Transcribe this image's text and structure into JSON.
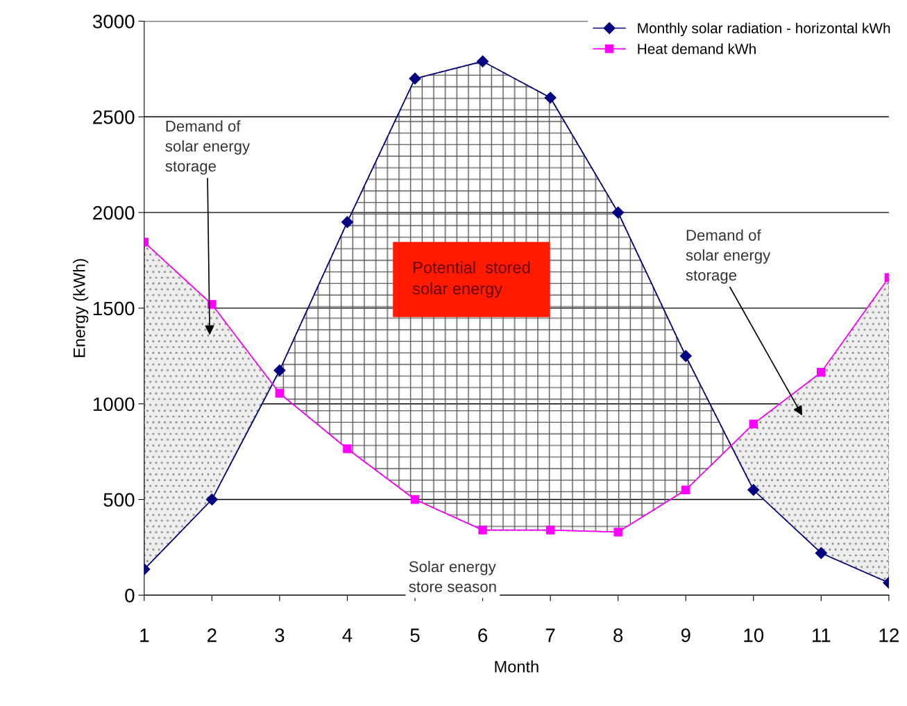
{
  "chart_data": {
    "type": "line",
    "xlabel": "Month",
    "ylabel": "Energy (kWh)",
    "x": [
      1,
      2,
      3,
      4,
      5,
      6,
      7,
      8,
      9,
      10,
      11,
      12
    ],
    "series": [
      {
        "name": "Monthly solar radiation - horizontal kWh",
        "color": "#000080",
        "marker": "diamond",
        "values": [
          135,
          500,
          1175,
          1950,
          2700,
          2790,
          2600,
          2000,
          1250,
          550,
          220,
          65
        ]
      },
      {
        "name": "Heat demand kWh",
        "color": "#ff00ff",
        "marker": "square",
        "values": [
          1845,
          1520,
          1055,
          765,
          500,
          340,
          340,
          330,
          550,
          895,
          1165,
          1660
        ]
      }
    ],
    "xlim": [
      1,
      12
    ],
    "xticks": [
      1,
      2,
      3,
      4,
      5,
      6,
      7,
      8,
      9,
      10,
      11,
      12
    ],
    "ylim": [
      0,
      3000
    ],
    "yticks": [
      0,
      500,
      1000,
      1500,
      2000,
      2500,
      3000
    ],
    "grid": "y",
    "legend": "top right",
    "annotations": [
      "Demand of\nsolar energy\nstorage",
      "Demand of\nsolar energy\nstorage",
      "Potential  stored\nsolar energy",
      "Solar energy\nstore season"
    ]
  }
}
